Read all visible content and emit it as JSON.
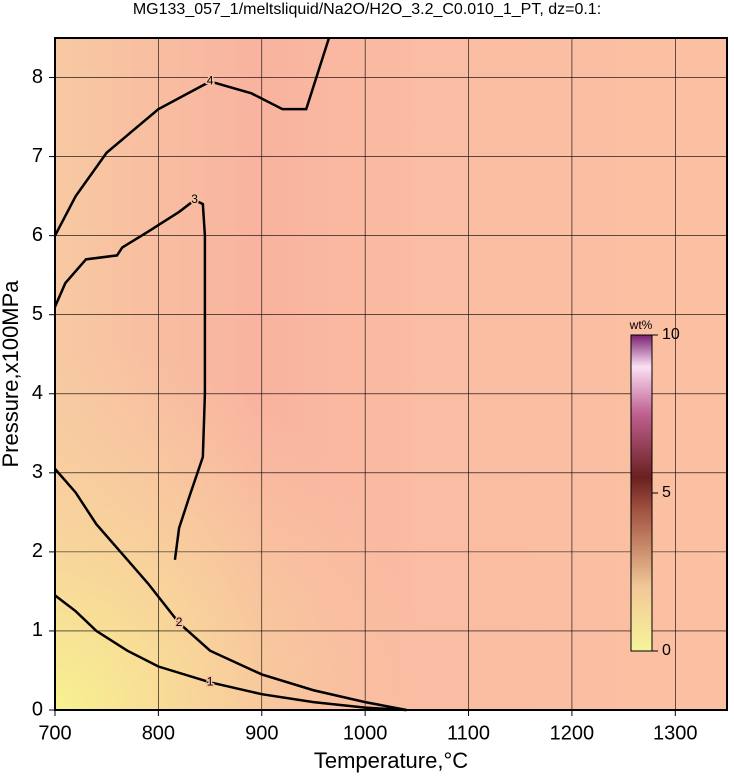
{
  "chart_data": {
    "type": "contour",
    "title": "MG133_057_1/meltsliquid/Na2O/H2O_3.2_C0.010_1_PT, dz=0.1:",
    "x_label": "Temperature,°C",
    "y_label": "Pressure,x100MPa",
    "xlim": [
      700,
      1350
    ],
    "ylim": [
      0,
      8.5
    ],
    "xticks": [
      700,
      800,
      900,
      1000,
      1100,
      1200,
      1300
    ],
    "yticks": [
      0,
      1,
      2,
      3,
      4,
      5,
      6,
      7,
      8
    ],
    "grid": true,
    "contours": [
      {
        "level": 1,
        "x": [
          700,
          720,
          740,
          770,
          800,
          850,
          900,
          950,
          1000,
          1040
        ],
        "y": [
          1.45,
          1.25,
          1.0,
          0.75,
          0.55,
          0.35,
          0.2,
          0.1,
          0.03,
          0
        ]
      },
      {
        "level": 2,
        "x": [
          700,
          720,
          740,
          760,
          790,
          820,
          850,
          900,
          950,
          1000,
          1040
        ],
        "y": [
          3.05,
          2.75,
          2.35,
          2.05,
          1.6,
          1.1,
          0.75,
          0.45,
          0.25,
          0.1,
          0
        ]
      },
      {
        "level": 3,
        "x": [
          816,
          820,
          830,
          843,
          845,
          845,
          845,
          843,
          835,
          820,
          790,
          765,
          760,
          730,
          710,
          700
        ],
        "y": [
          1.9,
          2.3,
          2.7,
          3.2,
          4.0,
          5.0,
          6.0,
          6.4,
          6.45,
          6.3,
          6.05,
          5.85,
          5.75,
          5.7,
          5.4,
          5.1
        ]
      },
      {
        "level": 4,
        "x": [
          700,
          720,
          750,
          800,
          850,
          890,
          920,
          943,
          965
        ],
        "y": [
          6.0,
          6.5,
          7.05,
          7.6,
          7.95,
          7.8,
          7.6,
          7.6,
          8.5
        ]
      }
    ],
    "colorbar": {
      "label": "wt%",
      "lim": [
        0,
        10
      ],
      "ticks": [
        0,
        5,
        10
      ]
    }
  }
}
